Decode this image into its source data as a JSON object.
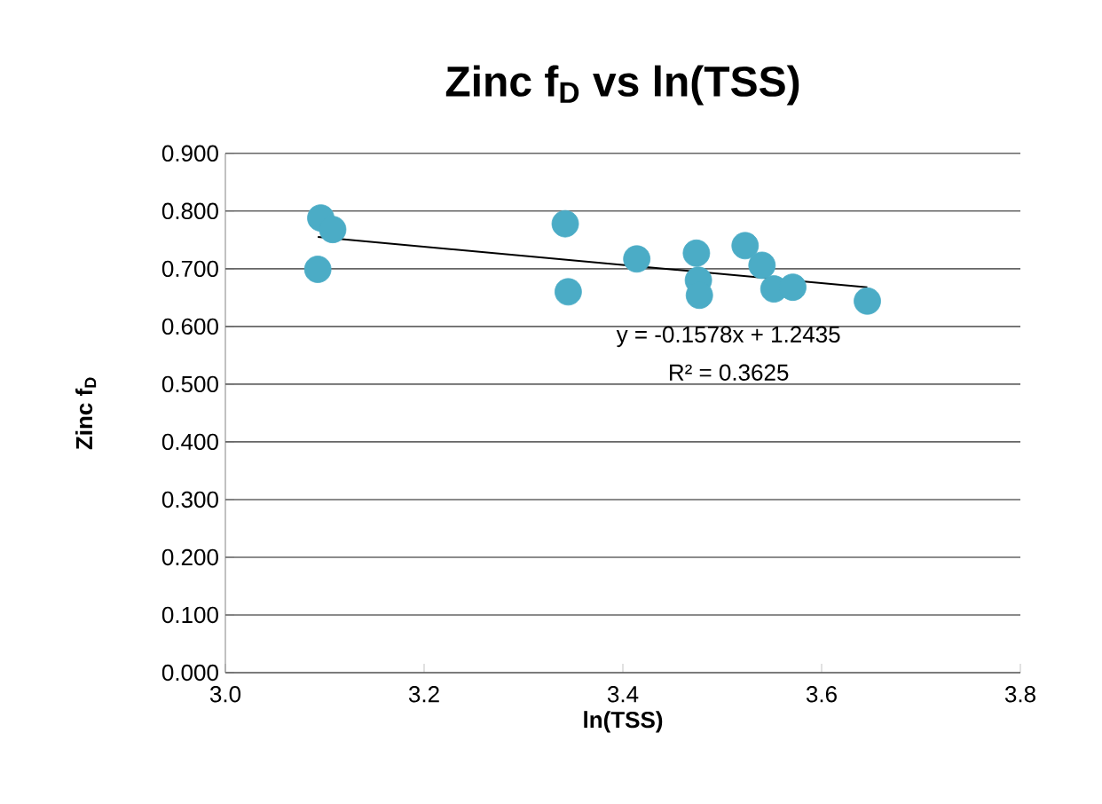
{
  "chart_data": {
    "type": "scatter",
    "title": "Zinc f$_{D}$ vs ln(TSS)",
    "xlabel": "ln(TSS)",
    "ylabel": "Zinc f$_{D}$",
    "xlim": [
      3.0,
      3.8
    ],
    "ylim": [
      0,
      0.9
    ],
    "xticks": [
      {
        "value": 3.0,
        "label": "3.0"
      },
      {
        "value": 3.2,
        "label": "3.2"
      },
      {
        "value": 3.4,
        "label": "3.4"
      },
      {
        "value": 3.6,
        "label": "3.6"
      },
      {
        "value": 3.8,
        "label": "3.8"
      }
    ],
    "yticks": [
      {
        "value": 0,
        "label": "0.000"
      },
      {
        "value": 0.1,
        "label": "0.100"
      },
      {
        "value": 0.2,
        "label": "0.200"
      },
      {
        "value": 0.3,
        "label": "0.300"
      },
      {
        "value": 0.4,
        "label": "0.400"
      },
      {
        "value": 0.5,
        "label": "0.500"
      },
      {
        "value": 0.6,
        "label": "0.600"
      },
      {
        "value": 0.7,
        "label": "0.700"
      },
      {
        "value": 0.8,
        "label": "0.800"
      },
      {
        "value": 0.9,
        "label": "0.900"
      }
    ],
    "grid": "y",
    "series": [
      {
        "marker": "circle",
        "color": "#4bacc6",
        "x": [
          3.096,
          3.108,
          3.093,
          3.342,
          3.345,
          3.414,
          3.474,
          3.476,
          3.477,
          3.523,
          3.54,
          3.552,
          3.571,
          3.646
        ],
        "values": [
          0.788,
          0.768,
          0.699,
          0.778,
          0.66,
          0.717,
          0.727,
          0.68,
          0.654,
          0.74,
          0.706,
          0.665,
          0.668,
          0.644
        ]
      },
      {
        "type": "line",
        "marker": "none",
        "color": "#000000",
        "x": [
          3.093,
          3.646
        ],
        "values": [
          0.755,
          0.668
        ]
      }
    ],
    "annotations": [
      "y = -0.1578x + 1.2435",
      "R² = 0.3625"
    ]
  }
}
